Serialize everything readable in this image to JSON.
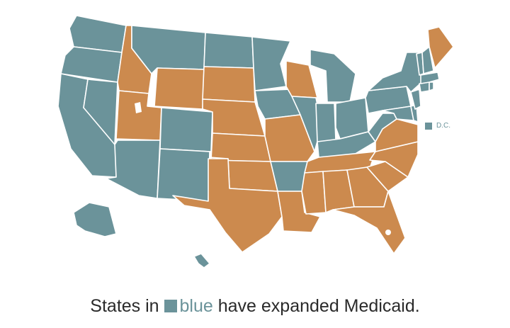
{
  "colors": {
    "expanded": "#6b939a",
    "not_expanded": "#cc8a4e",
    "caption_text": "#2a2a2a"
  },
  "dc_label": "D.C.",
  "caption": {
    "before": "States in",
    "highlight": "blue",
    "after": "have expanded Medicaid."
  },
  "states": [
    {
      "id": "WA",
      "expanded": true
    },
    {
      "id": "OR",
      "expanded": true
    },
    {
      "id": "CA",
      "expanded": true
    },
    {
      "id": "NV",
      "expanded": true
    },
    {
      "id": "ID",
      "expanded": false
    },
    {
      "id": "MT",
      "expanded": true
    },
    {
      "id": "WY",
      "expanded": false
    },
    {
      "id": "UT",
      "expanded": false
    },
    {
      "id": "AZ",
      "expanded": true
    },
    {
      "id": "CO",
      "expanded": true
    },
    {
      "id": "NM",
      "expanded": true
    },
    {
      "id": "ND",
      "expanded": true
    },
    {
      "id": "SD",
      "expanded": false
    },
    {
      "id": "NE",
      "expanded": false
    },
    {
      "id": "KS",
      "expanded": false
    },
    {
      "id": "OK",
      "expanded": false
    },
    {
      "id": "TX",
      "expanded": false
    },
    {
      "id": "MN",
      "expanded": true
    },
    {
      "id": "IA",
      "expanded": true
    },
    {
      "id": "MO",
      "expanded": false
    },
    {
      "id": "AR",
      "expanded": true
    },
    {
      "id": "LA",
      "expanded": false
    },
    {
      "id": "WI",
      "expanded": false
    },
    {
      "id": "IL",
      "expanded": true
    },
    {
      "id": "MI",
      "expanded": true
    },
    {
      "id": "IN",
      "expanded": true
    },
    {
      "id": "OH",
      "expanded": true
    },
    {
      "id": "KY",
      "expanded": true
    },
    {
      "id": "TN",
      "expanded": false
    },
    {
      "id": "MS",
      "expanded": false
    },
    {
      "id": "AL",
      "expanded": false
    },
    {
      "id": "GA",
      "expanded": false
    },
    {
      "id": "FL",
      "expanded": false
    },
    {
      "id": "SC",
      "expanded": false
    },
    {
      "id": "NC",
      "expanded": false
    },
    {
      "id": "VA",
      "expanded": false
    },
    {
      "id": "WV",
      "expanded": true
    },
    {
      "id": "PA",
      "expanded": true
    },
    {
      "id": "NY",
      "expanded": true
    },
    {
      "id": "MD",
      "expanded": true
    },
    {
      "id": "DE",
      "expanded": true
    },
    {
      "id": "NJ",
      "expanded": true
    },
    {
      "id": "CT",
      "expanded": true
    },
    {
      "id": "RI",
      "expanded": true
    },
    {
      "id": "MA",
      "expanded": true
    },
    {
      "id": "VT",
      "expanded": true
    },
    {
      "id": "NH",
      "expanded": true
    },
    {
      "id": "ME",
      "expanded": false
    },
    {
      "id": "AK",
      "expanded": true
    },
    {
      "id": "HI",
      "expanded": true
    }
  ]
}
